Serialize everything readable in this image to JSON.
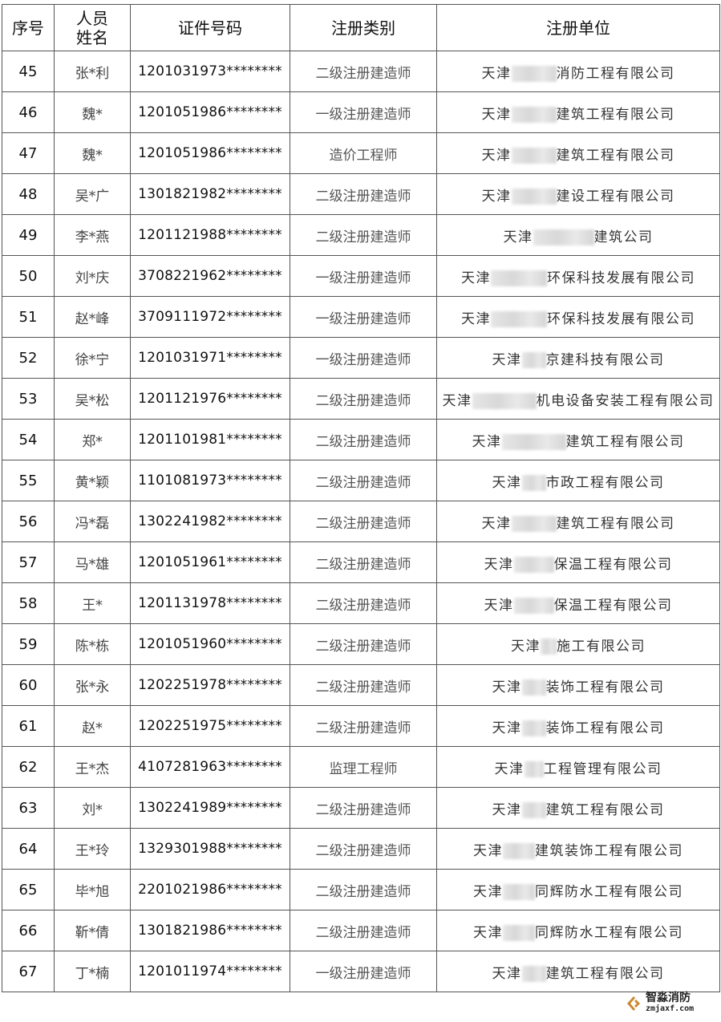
{
  "headers": {
    "seq": "序号",
    "name": "人员姓名",
    "id": "证件号码",
    "category": "注册类别",
    "org": "注册单位"
  },
  "rows": [
    {
      "seq": "45",
      "name": "张*利",
      "id": "1201031973********",
      "category": "二级注册建造师",
      "org_prefix": "天津",
      "org_suffix": "消防工程有限公司"
    },
    {
      "seq": "46",
      "name": "魏*",
      "id": "1201051986********",
      "category": "一级注册建造师",
      "org_prefix": "天津",
      "org_suffix": "建筑工程有限公司"
    },
    {
      "seq": "47",
      "name": "魏*",
      "id": "1201051986********",
      "category": "造价工程师",
      "org_prefix": "天津",
      "org_suffix": "建筑工程有限公司"
    },
    {
      "seq": "48",
      "name": "吴*广",
      "id": "1301821982********",
      "category": "二级注册建造师",
      "org_prefix": "天津",
      "org_suffix": "建设工程有限公司"
    },
    {
      "seq": "49",
      "name": "李*燕",
      "id": "1201121988********",
      "category": "二级注册建造师",
      "org_prefix": "天津",
      "org_suffix": "建筑公司"
    },
    {
      "seq": "50",
      "name": "刘*庆",
      "id": "3708221962********",
      "category": "一级注册建造师",
      "org_prefix": "天津",
      "org_suffix": "环保科技发展有限公司"
    },
    {
      "seq": "51",
      "name": "赵*峰",
      "id": "3709111972********",
      "category": "一级注册建造师",
      "org_prefix": "天津",
      "org_suffix": "环保科技发展有限公司"
    },
    {
      "seq": "52",
      "name": "徐*宁",
      "id": "1201031971********",
      "category": "一级注册建造师",
      "org_prefix": "天津",
      "org_suffix": "京建科技有限公司"
    },
    {
      "seq": "53",
      "name": "吴*松",
      "id": "1201121976********",
      "category": "二级注册建造师",
      "org_prefix": "天津",
      "org_suffix": "机电设备安装工程有限公司"
    },
    {
      "seq": "54",
      "name": "郑*",
      "id": "1201101981********",
      "category": "二级注册建造师",
      "org_prefix": "天津",
      "org_suffix": "建筑工程有限公司"
    },
    {
      "seq": "55",
      "name": "黄*颖",
      "id": "1101081973********",
      "category": "二级注册建造师",
      "org_prefix": "天津",
      "org_suffix": "市政工程有限公司"
    },
    {
      "seq": "56",
      "name": "冯*磊",
      "id": "1302241982********",
      "category": "二级注册建造师",
      "org_prefix": "天津",
      "org_suffix": "建筑工程有限公司"
    },
    {
      "seq": "57",
      "name": "马*雄",
      "id": "1201051961********",
      "category": "二级注册建造师",
      "org_prefix": "天津",
      "org_suffix": "保温工程有限公司"
    },
    {
      "seq": "58",
      "name": "王*",
      "id": "1201131978********",
      "category": "二级注册建造师",
      "org_prefix": "天津",
      "org_suffix": "保温工程有限公司"
    },
    {
      "seq": "59",
      "name": "陈*栋",
      "id": "1201051960********",
      "category": "二级注册建造师",
      "org_prefix": "天津",
      "org_suffix": "施工有限公司"
    },
    {
      "seq": "60",
      "name": "张*永",
      "id": "1202251978********",
      "category": "二级注册建造师",
      "org_prefix": "天津",
      "org_suffix": "装饰工程有限公司"
    },
    {
      "seq": "61",
      "name": "赵*",
      "id": "1202251975********",
      "category": "二级注册建造师",
      "org_prefix": "天津",
      "org_suffix": "装饰工程有限公司"
    },
    {
      "seq": "62",
      "name": "王*杰",
      "id": "4107281963********",
      "category": "监理工程师",
      "org_prefix": "天津",
      "org_suffix": "工程管理有限公司"
    },
    {
      "seq": "63",
      "name": "刘*",
      "id": "1302241989********",
      "category": "二级注册建造师",
      "org_prefix": "天津",
      "org_suffix": "建筑工程有限公司"
    },
    {
      "seq": "64",
      "name": "王*玲",
      "id": "1329301988********",
      "category": "二级注册建造师",
      "org_prefix": "天津",
      "org_suffix": "建筑装饰工程有限公司"
    },
    {
      "seq": "65",
      "name": "毕*旭",
      "id": "2201021986********",
      "category": "二级注册建造师",
      "org_prefix": "天津",
      "org_suffix": "同辉防水工程有限公司"
    },
    {
      "seq": "66",
      "name": "靳*倩",
      "id": "1301821986********",
      "category": "二级注册建造师",
      "org_prefix": "天津",
      "org_suffix": "同辉防水工程有限公司"
    },
    {
      "seq": "67",
      "name": "丁*楠",
      "id": "1201011974********",
      "category": "一级注册建造师",
      "org_prefix": "天津",
      "org_suffix": "建筑工程有限公司"
    }
  ],
  "watermark": {
    "name": "智淼消防",
    "url": "zmjaxf.com",
    "icon": "diamond-flame-logo-icon",
    "color": "#c9882a"
  }
}
